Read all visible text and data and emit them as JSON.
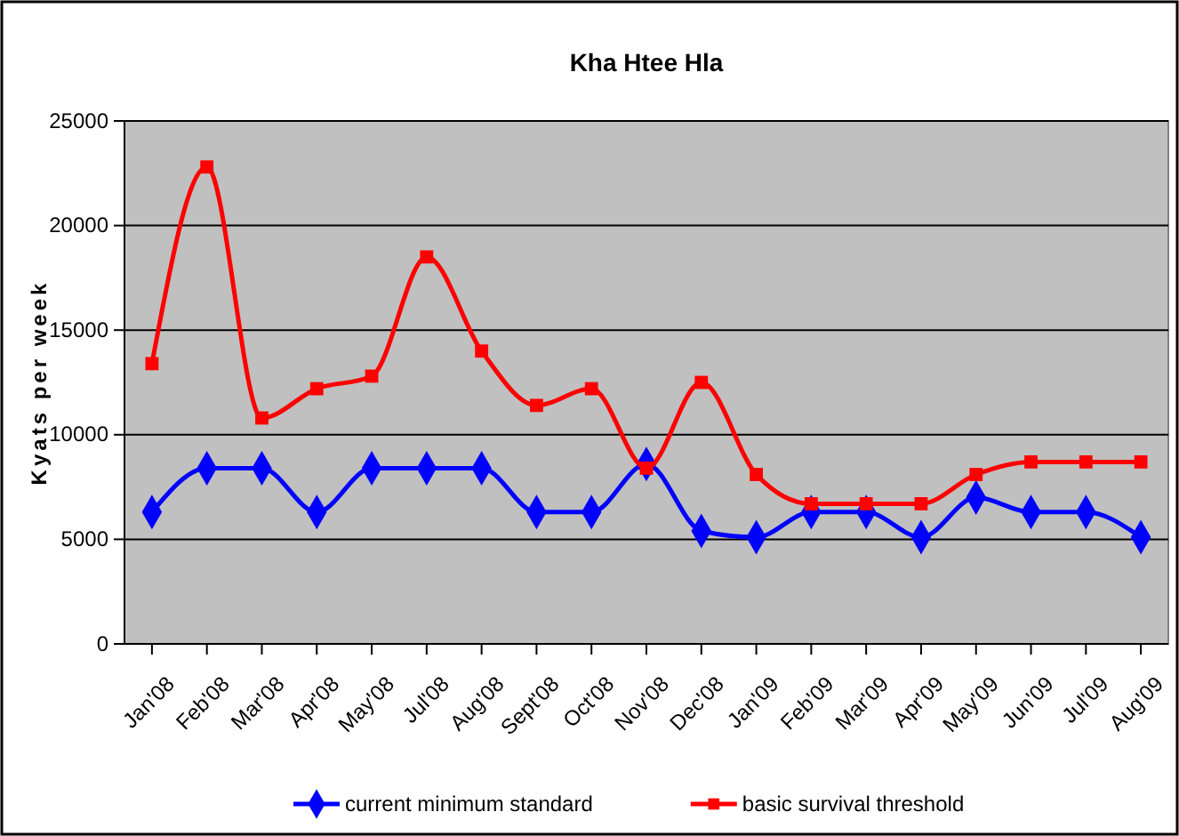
{
  "chart_data": {
    "type": "line",
    "title": "Kha Htee Hla",
    "ylabel": "Kyats per week",
    "categories": [
      "Jan'08",
      "Feb'08",
      "Mar'08",
      "Apr'08",
      "May'08",
      "Jul'08",
      "Aug'08",
      "Sept'08",
      "Oct'08",
      "Nov'08",
      "Dec'08",
      "Jan'09",
      "Feb'09",
      "Mar'09",
      "Apr'09",
      "May'09",
      "Jun'09",
      "Jul'09",
      "Aug'09"
    ],
    "series": [
      {
        "name": "current minimum standard",
        "color": "#0000ff",
        "marker": "diamond",
        "values": [
          6300,
          8400,
          8400,
          6300,
          8400,
          8400,
          8400,
          6300,
          6300,
          8600,
          5400,
          5100,
          6300,
          6300,
          5100,
          7000,
          6300,
          6300,
          5100
        ]
      },
      {
        "name": "basic survival threshold",
        "color": "#ff0000",
        "marker": "square",
        "values": [
          13400,
          22800,
          10800,
          12200,
          12800,
          18500,
          14000,
          11400,
          12200,
          8400,
          12500,
          8100,
          6700,
          6700,
          6700,
          8100,
          8700,
          8700,
          8700
        ]
      }
    ],
    "ylim": [
      0,
      25000
    ],
    "yticks": [
      0,
      5000,
      10000,
      15000,
      20000,
      25000
    ],
    "grid": "y",
    "legend": "bottom"
  }
}
